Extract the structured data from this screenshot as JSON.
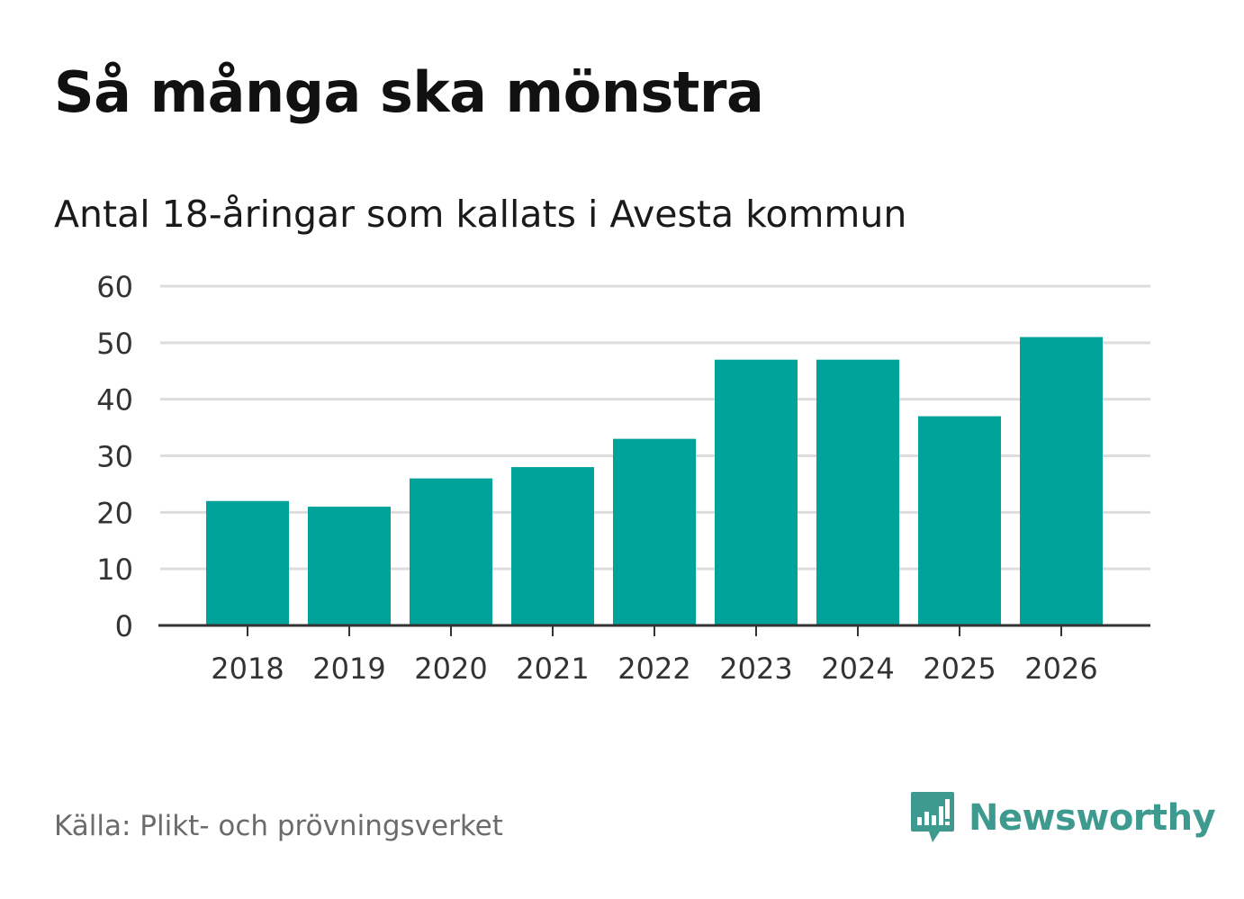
{
  "title": "Så många ska mönstra",
  "subtitle": "Antal 18-åringar som kallats i Avesta kommun",
  "source": "Källa: Plikt- och prövningsverket",
  "brand": {
    "name": "Newsworthy",
    "icon": "newsworthy-logo-icon",
    "color": "#3e9a8e"
  },
  "colors": {
    "bar": "#00a39a",
    "grid": "#dddddd",
    "axis": "#333333"
  },
  "chart_data": {
    "type": "bar",
    "title": "Så många ska mönstra",
    "subtitle": "Antal 18-åringar som kallats i Avesta kommun",
    "categories": [
      "2018",
      "2019",
      "2020",
      "2021",
      "2022",
      "2023",
      "2024",
      "2025",
      "2026"
    ],
    "values": [
      22,
      21,
      26,
      28,
      33,
      47,
      47,
      37,
      51
    ],
    "yticks": [
      0,
      10,
      20,
      30,
      40,
      50,
      60
    ],
    "ylim": [
      0,
      60
    ],
    "xlabel": "",
    "ylabel": "",
    "grid": true,
    "legend": "none"
  }
}
